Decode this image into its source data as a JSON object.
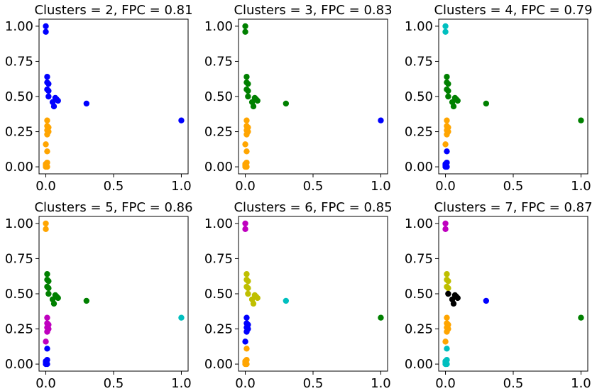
{
  "chart_data": [
    {
      "type": "scatter",
      "title": "Clusters = 2, FPC = 0.81",
      "xlim": [
        -0.05,
        1.05
      ],
      "ylim": [
        -0.05,
        1.05
      ],
      "xticks": [
        "0.0",
        "0.5",
        "1.0"
      ],
      "yticks": [
        "0.00",
        "0.25",
        "0.50",
        "0.75",
        "1.00"
      ],
      "series": [
        {
          "color": "#0000ff",
          "points": [
            [
              0.0,
              1.0
            ],
            [
              0.0,
              0.96
            ],
            [
              0.01,
              0.64
            ],
            [
              0.01,
              0.6
            ],
            [
              0.02,
              0.59
            ],
            [
              0.01,
              0.55
            ],
            [
              0.02,
              0.54
            ],
            [
              0.02,
              0.5
            ],
            [
              0.07,
              0.49
            ],
            [
              0.08,
              0.48
            ],
            [
              0.09,
              0.47
            ],
            [
              0.05,
              0.46
            ],
            [
              0.06,
              0.43
            ],
            [
              0.3,
              0.45
            ],
            [
              1.0,
              0.33
            ]
          ]
        },
        {
          "color": "#ffa500",
          "points": [
            [
              0.01,
              0.33
            ],
            [
              0.01,
              0.29
            ],
            [
              0.02,
              0.28
            ],
            [
              0.01,
              0.26
            ],
            [
              0.02,
              0.25
            ],
            [
              0.01,
              0.23
            ],
            [
              0.0,
              0.16
            ],
            [
              0.01,
              0.11
            ],
            [
              0.01,
              0.03
            ],
            [
              0.0,
              0.02
            ],
            [
              0.0,
              0.01
            ],
            [
              0.01,
              0.0
            ],
            [
              0.0,
              0.0
            ]
          ]
        }
      ]
    },
    {
      "type": "scatter",
      "title": "Clusters = 3, FPC = 0.83",
      "xlim": [
        -0.05,
        1.05
      ],
      "ylim": [
        -0.05,
        1.05
      ],
      "xticks": [
        "0.0",
        "0.5",
        "1.0"
      ],
      "yticks": [
        "0.00",
        "0.25",
        "0.50",
        "0.75",
        "1.00"
      ],
      "series": [
        {
          "color": "#008000",
          "points": [
            [
              0.0,
              1.0
            ],
            [
              0.0,
              0.96
            ],
            [
              0.01,
              0.64
            ],
            [
              0.01,
              0.6
            ],
            [
              0.02,
              0.59
            ],
            [
              0.01,
              0.55
            ],
            [
              0.02,
              0.54
            ],
            [
              0.02,
              0.5
            ],
            [
              0.07,
              0.49
            ],
            [
              0.08,
              0.48
            ],
            [
              0.09,
              0.47
            ],
            [
              0.05,
              0.46
            ],
            [
              0.06,
              0.43
            ],
            [
              0.3,
              0.45
            ]
          ]
        },
        {
          "color": "#0000ff",
          "points": [
            [
              1.0,
              0.33
            ]
          ]
        },
        {
          "color": "#ffa500",
          "points": [
            [
              0.01,
              0.33
            ],
            [
              0.01,
              0.29
            ],
            [
              0.02,
              0.28
            ],
            [
              0.01,
              0.26
            ],
            [
              0.02,
              0.25
            ],
            [
              0.01,
              0.23
            ],
            [
              0.0,
              0.16
            ],
            [
              0.01,
              0.11
            ],
            [
              0.01,
              0.03
            ],
            [
              0.0,
              0.02
            ],
            [
              0.0,
              0.01
            ],
            [
              0.01,
              0.0
            ],
            [
              0.0,
              0.0
            ]
          ]
        }
      ]
    },
    {
      "type": "scatter",
      "title": "Clusters = 4, FPC = 0.79",
      "xlim": [
        -0.05,
        1.05
      ],
      "ylim": [
        -0.05,
        1.05
      ],
      "xticks": [
        "0.0",
        "0.5",
        "1.0"
      ],
      "yticks": [
        "0.00",
        "0.25",
        "0.50",
        "0.75",
        "1.00"
      ],
      "series": [
        {
          "color": "#00bfbf",
          "points": [
            [
              0.0,
              1.0
            ],
            [
              0.0,
              0.96
            ]
          ]
        },
        {
          "color": "#008000",
          "points": [
            [
              0.01,
              0.64
            ],
            [
              0.01,
              0.6
            ],
            [
              0.02,
              0.59
            ],
            [
              0.01,
              0.55
            ],
            [
              0.02,
              0.54
            ],
            [
              0.02,
              0.5
            ],
            [
              0.07,
              0.49
            ],
            [
              0.08,
              0.48
            ],
            [
              0.09,
              0.47
            ],
            [
              0.05,
              0.46
            ],
            [
              0.06,
              0.43
            ],
            [
              0.3,
              0.45
            ],
            [
              1.0,
              0.33
            ]
          ]
        },
        {
          "color": "#ffa500",
          "points": [
            [
              0.01,
              0.33
            ],
            [
              0.01,
              0.29
            ],
            [
              0.02,
              0.28
            ],
            [
              0.01,
              0.26
            ],
            [
              0.02,
              0.25
            ],
            [
              0.01,
              0.23
            ],
            [
              0.0,
              0.16
            ]
          ]
        },
        {
          "color": "#0000ff",
          "points": [
            [
              0.01,
              0.11
            ],
            [
              0.01,
              0.03
            ],
            [
              0.0,
              0.02
            ],
            [
              0.0,
              0.01
            ],
            [
              0.01,
              0.0
            ],
            [
              0.0,
              0.0
            ]
          ]
        }
      ]
    },
    {
      "type": "scatter",
      "title": "Clusters = 5, FPC = 0.86",
      "xlim": [
        -0.05,
        1.05
      ],
      "ylim": [
        -0.05,
        1.05
      ],
      "xticks": [
        "0.0",
        "0.5",
        "1.0"
      ],
      "yticks": [
        "0.00",
        "0.25",
        "0.50",
        "0.75",
        "1.00"
      ],
      "series": [
        {
          "color": "#ffa500",
          "points": [
            [
              0.0,
              1.0
            ],
            [
              0.0,
              0.96
            ]
          ]
        },
        {
          "color": "#008000",
          "points": [
            [
              0.01,
              0.64
            ],
            [
              0.01,
              0.6
            ],
            [
              0.02,
              0.59
            ],
            [
              0.01,
              0.55
            ],
            [
              0.02,
              0.54
            ],
            [
              0.02,
              0.5
            ],
            [
              0.07,
              0.49
            ],
            [
              0.08,
              0.48
            ],
            [
              0.09,
              0.47
            ],
            [
              0.05,
              0.46
            ],
            [
              0.06,
              0.43
            ],
            [
              0.3,
              0.45
            ]
          ]
        },
        {
          "color": "#00bfbf",
          "points": [
            [
              1.0,
              0.33
            ]
          ]
        },
        {
          "color": "#bf00bf",
          "points": [
            [
              0.01,
              0.33
            ],
            [
              0.01,
              0.29
            ],
            [
              0.02,
              0.28
            ],
            [
              0.01,
              0.26
            ],
            [
              0.02,
              0.25
            ],
            [
              0.01,
              0.23
            ],
            [
              0.0,
              0.16
            ]
          ]
        },
        {
          "color": "#0000ff",
          "points": [
            [
              0.01,
              0.11
            ],
            [
              0.01,
              0.03
            ],
            [
              0.0,
              0.02
            ],
            [
              0.0,
              0.01
            ],
            [
              0.01,
              0.0
            ],
            [
              0.0,
              0.0
            ]
          ]
        }
      ]
    },
    {
      "type": "scatter",
      "title": "Clusters = 6, FPC = 0.85",
      "xlim": [
        -0.05,
        1.05
      ],
      "ylim": [
        -0.05,
        1.05
      ],
      "xticks": [
        "0.0",
        "0.5",
        "1.0"
      ],
      "yticks": [
        "0.00",
        "0.25",
        "0.50",
        "0.75",
        "1.00"
      ],
      "series": [
        {
          "color": "#bf00bf",
          "points": [
            [
              0.0,
              1.0
            ],
            [
              0.0,
              0.96
            ]
          ]
        },
        {
          "color": "#bfbf00",
          "points": [
            [
              0.01,
              0.64
            ],
            [
              0.01,
              0.6
            ],
            [
              0.02,
              0.59
            ],
            [
              0.01,
              0.55
            ],
            [
              0.02,
              0.54
            ],
            [
              0.02,
              0.5
            ],
            [
              0.07,
              0.49
            ],
            [
              0.08,
              0.48
            ],
            [
              0.09,
              0.47
            ],
            [
              0.05,
              0.46
            ],
            [
              0.06,
              0.43
            ]
          ]
        },
        {
          "color": "#00bfbf",
          "points": [
            [
              0.3,
              0.45
            ]
          ]
        },
        {
          "color": "#008000",
          "points": [
            [
              1.0,
              0.33
            ]
          ]
        },
        {
          "color": "#0000ff",
          "points": [
            [
              0.01,
              0.33
            ],
            [
              0.01,
              0.29
            ],
            [
              0.02,
              0.28
            ],
            [
              0.01,
              0.26
            ],
            [
              0.02,
              0.25
            ],
            [
              0.01,
              0.23
            ],
            [
              0.0,
              0.16
            ]
          ]
        },
        {
          "color": "#ffa500",
          "points": [
            [
              0.01,
              0.11
            ],
            [
              0.01,
              0.03
            ],
            [
              0.0,
              0.02
            ],
            [
              0.0,
              0.01
            ],
            [
              0.01,
              0.0
            ],
            [
              0.0,
              0.0
            ]
          ]
        }
      ]
    },
    {
      "type": "scatter",
      "title": "Clusters = 7, FPC = 0.87",
      "xlim": [
        -0.05,
        1.05
      ],
      "ylim": [
        -0.05,
        1.05
      ],
      "xticks": [
        "0.0",
        "0.5",
        "1.0"
      ],
      "yticks": [
        "0.00",
        "0.25",
        "0.50",
        "0.75",
        "1.00"
      ],
      "series": [
        {
          "color": "#bf00bf",
          "points": [
            [
              0.0,
              1.0
            ],
            [
              0.0,
              0.96
            ]
          ]
        },
        {
          "color": "#bfbf00",
          "points": [
            [
              0.01,
              0.64
            ],
            [
              0.01,
              0.6
            ],
            [
              0.02,
              0.59
            ],
            [
              0.01,
              0.55
            ],
            [
              0.02,
              0.54
            ]
          ]
        },
        {
          "color": "#000000",
          "points": [
            [
              0.02,
              0.5
            ],
            [
              0.07,
              0.49
            ],
            [
              0.08,
              0.48
            ],
            [
              0.09,
              0.47
            ],
            [
              0.05,
              0.46
            ],
            [
              0.06,
              0.43
            ]
          ]
        },
        {
          "color": "#0000ff",
          "points": [
            [
              0.3,
              0.45
            ]
          ]
        },
        {
          "color": "#008000",
          "points": [
            [
              1.0,
              0.33
            ]
          ]
        },
        {
          "color": "#ffa500",
          "points": [
            [
              0.01,
              0.33
            ],
            [
              0.01,
              0.29
            ],
            [
              0.02,
              0.28
            ],
            [
              0.01,
              0.26
            ],
            [
              0.02,
              0.25
            ],
            [
              0.01,
              0.23
            ],
            [
              0.0,
              0.16
            ]
          ]
        },
        {
          "color": "#00bfbf",
          "points": [
            [
              0.01,
              0.11
            ],
            [
              0.01,
              0.03
            ],
            [
              0.0,
              0.02
            ],
            [
              0.0,
              0.01
            ],
            [
              0.01,
              0.0
            ],
            [
              0.0,
              0.0
            ]
          ]
        }
      ]
    }
  ]
}
